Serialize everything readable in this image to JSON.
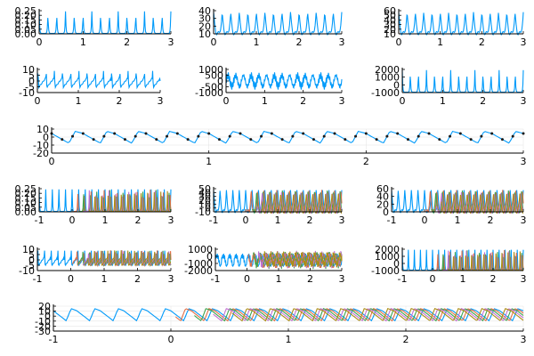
{
  "colors": {
    "primary": "#009AFA",
    "series2": "#E26F46",
    "series3": "#3EA44E",
    "series4": "#C371D2",
    "series5": "#AC8E18",
    "marker": "#1a1a1a",
    "axis": "#000000",
    "grid": "#e6e6e6"
  },
  "chart_data": [
    {
      "id": "r1c1",
      "type": "line",
      "xlim": [
        0,
        3
      ],
      "ylim": [
        0,
        0.25
      ],
      "yticks": [
        "0.00",
        "0.05",
        "0.10",
        "0.15",
        "0.20",
        "0.25"
      ],
      "xticks": [
        "0",
        "1",
        "2",
        "3"
      ],
      "n_series": 1,
      "n_peaks": 15,
      "shape": "spike",
      "grid": false
    },
    {
      "id": "r1c2",
      "type": "line",
      "xlim": [
        0,
        3
      ],
      "ylim": [
        10,
        40
      ],
      "yticks": [
        "10",
        "20",
        "30",
        "40"
      ],
      "xticks": [
        "0",
        "1",
        "2",
        "3"
      ],
      "n_series": 1,
      "n_peaks": 15,
      "shape": "bump",
      "grid": false
    },
    {
      "id": "r1c3",
      "type": "line",
      "xlim": [
        0,
        3
      ],
      "ylim": [
        10,
        60
      ],
      "yticks": [
        "10",
        "20",
        "30",
        "40",
        "50",
        "60"
      ],
      "xticks": [
        "0",
        "1",
        "2",
        "3"
      ],
      "n_series": 1,
      "n_peaks": 15,
      "shape": "bump",
      "grid": false
    },
    {
      "id": "r2c1",
      "type": "line",
      "xlim": [
        0,
        3
      ],
      "ylim": [
        -10,
        10
      ],
      "yticks": [
        "-10",
        "-5",
        "0",
        "5",
        "10"
      ],
      "xticks": [
        "0",
        "1",
        "2",
        "3"
      ],
      "n_series": 1,
      "n_peaks": 15,
      "shape": "osc",
      "grid": false
    },
    {
      "id": "r2c2",
      "type": "line",
      "xlim": [
        0,
        3
      ],
      "ylim": [
        -1000,
        1000
      ],
      "yticks": [
        "-1000",
        "-500",
        "0",
        "500",
        "1000"
      ],
      "xticks": [
        "0",
        "1",
        "2",
        "3"
      ],
      "n_series": 1,
      "n_peaks": 15,
      "shape": "noisy",
      "grid": false
    },
    {
      "id": "r2c3",
      "type": "line",
      "xlim": [
        0,
        3
      ],
      "ylim": [
        -1000,
        2000
      ],
      "yticks": [
        "-1000",
        "0",
        "1000",
        "2000"
      ],
      "xticks": [
        "0",
        "1",
        "2",
        "3"
      ],
      "n_series": 1,
      "n_peaks": 15,
      "shape": "spike",
      "grid": false
    },
    {
      "id": "r3",
      "type": "line",
      "xlim": [
        0,
        3
      ],
      "ylim": [
        -20,
        10
      ],
      "yticks": [
        "-20",
        "-10",
        "0",
        "10"
      ],
      "xticks": [
        "0",
        "1",
        "2",
        "3"
      ],
      "n_series": 1,
      "n_peaks": 15,
      "shape": "saw",
      "markers": true,
      "grid": true
    },
    {
      "id": "r4c1",
      "type": "line",
      "xlim": [
        -1,
        3
      ],
      "ylim": [
        0,
        0.25
      ],
      "yticks": [
        "0.00",
        "0.05",
        "0.10",
        "0.15",
        "0.20",
        "0.25"
      ],
      "xticks": [
        "-1",
        "0",
        "1",
        "2",
        "3"
      ],
      "n_series": 5,
      "n_peaks": 20,
      "shape": "spike",
      "grid": false
    },
    {
      "id": "r4c2",
      "type": "line",
      "xlim": [
        -1,
        3
      ],
      "ylim": [
        -10,
        50
      ],
      "yticks": [
        "-10",
        "0",
        "10",
        "20",
        "30",
        "40",
        "50"
      ],
      "xticks": [
        "-1",
        "0",
        "1",
        "2",
        "3"
      ],
      "n_series": 5,
      "n_peaks": 20,
      "shape": "bump",
      "grid": false
    },
    {
      "id": "r4c3",
      "type": "line",
      "xlim": [
        -1,
        3
      ],
      "ylim": [
        0,
        60
      ],
      "yticks": [
        "0",
        "20",
        "40",
        "60"
      ],
      "xticks": [
        "-1",
        "0",
        "1",
        "2",
        "3"
      ],
      "n_series": 5,
      "n_peaks": 20,
      "shape": "bump",
      "grid": false
    },
    {
      "id": "r5c1",
      "type": "line",
      "xlim": [
        -1,
        3
      ],
      "ylim": [
        -10,
        10
      ],
      "yticks": [
        "-10",
        "-5",
        "0",
        "5",
        "10"
      ],
      "xticks": [
        "-1",
        "0",
        "1",
        "2",
        "3"
      ],
      "n_series": 5,
      "n_peaks": 20,
      "shape": "osc",
      "grid": false
    },
    {
      "id": "r5c2",
      "type": "line",
      "xlim": [
        -1,
        3
      ],
      "ylim": [
        -2000,
        1000
      ],
      "yticks": [
        "-2000",
        "-1000",
        "0",
        "1000"
      ],
      "xticks": [
        "-1",
        "0",
        "1",
        "2",
        "3"
      ],
      "n_series": 5,
      "n_peaks": 20,
      "shape": "noisy",
      "grid": false
    },
    {
      "id": "r5c3",
      "type": "line",
      "xlim": [
        -1,
        3
      ],
      "ylim": [
        -1000,
        2000
      ],
      "yticks": [
        "-1000",
        "0",
        "1000",
        "2000"
      ],
      "xticks": [
        "-1",
        "0",
        "1",
        "2",
        "3"
      ],
      "n_series": 5,
      "n_peaks": 20,
      "shape": "spike",
      "grid": false
    },
    {
      "id": "r6",
      "type": "line",
      "xlim": [
        -1,
        3
      ],
      "ylim": [
        -30,
        20
      ],
      "yticks": [
        "-30",
        "-20",
        "-10",
        "0",
        "10",
        "20"
      ],
      "xticks": [
        "-1",
        "0",
        "1",
        "2",
        "3"
      ],
      "n_series": 5,
      "n_peaks": 20,
      "shape": "saw",
      "grid": true
    }
  ]
}
